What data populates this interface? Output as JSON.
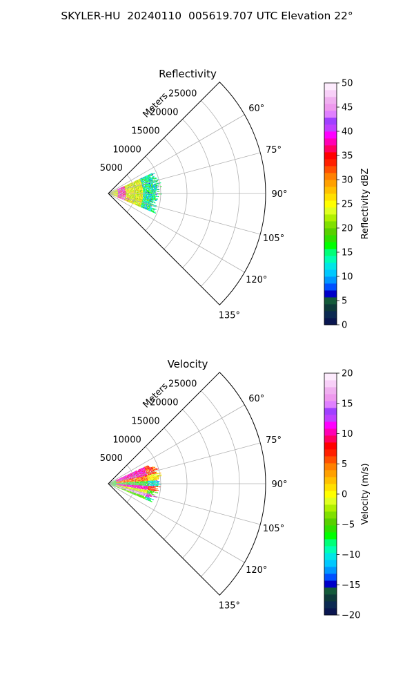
{
  "page": {
    "title": "SKYLER-HU  20240110  005619.707 UTC Elevation 22°"
  },
  "chart_data": [
    {
      "type": "ppi-sector",
      "title": "Reflectivity",
      "range_label": "Meters",
      "range_ticks": [
        5000,
        10000,
        15000,
        20000,
        25000
      ],
      "range_tick_labels": [
        "5000",
        "10000",
        "15000",
        "20000",
        "25000"
      ],
      "range_max": 30000,
      "theta_ticks": [
        60,
        75,
        90,
        105,
        120,
        135
      ],
      "theta_tick_labels": [
        "60°",
        "75°",
        "90°",
        "105°",
        "120°",
        "135°"
      ],
      "theta_range": [
        45,
        135
      ],
      "grid": true,
      "colorbar": {
        "label": "Reflectivity dBZ",
        "min": 0,
        "max": 50,
        "ticks": [
          0,
          5,
          10,
          15,
          20,
          25,
          30,
          35,
          40,
          45,
          50
        ],
        "tick_labels": [
          "0",
          "5",
          "10",
          "15",
          "20",
          "25",
          "30",
          "35",
          "40",
          "45",
          "50"
        ],
        "colors": [
          "#0a1650",
          "#0c2a52",
          "#0e3a3a",
          "#145a3a",
          "#0000c8",
          "#0050ff",
          "#0096ff",
          "#00c8ff",
          "#00e6e6",
          "#00ffb4",
          "#00ff78",
          "#00ff00",
          "#30e000",
          "#58d000",
          "#80e000",
          "#b0f000",
          "#e0ff20",
          "#ffff00",
          "#ffe000",
          "#ffc000",
          "#ffa000",
          "#ff8000",
          "#ff5000",
          "#ff2000",
          "#ff0000",
          "#ff0060",
          "#ff00b4",
          "#ff00ff",
          "#c040ff",
          "#a040ff",
          "#e080ff",
          "#ee99ee",
          "#f0b0f0",
          "#f8d0f8",
          "#fdebfd"
        ]
      },
      "data_extent": {
        "theta": [
          65,
          113
        ],
        "range_max_m": 10000,
        "range_min_m": 0
      },
      "echo_summary": "Near-range echoes dominated by 20-30 dBZ with a ring of 35-45 dBZ near 2000-3000 m and weaker 10-20 dBZ at the outer edge."
    },
    {
      "type": "ppi-sector",
      "title": "Velocity",
      "range_label": "Meters",
      "range_ticks": [
        5000,
        10000,
        15000,
        20000,
        25000
      ],
      "range_tick_labels": [
        "5000",
        "10000",
        "15000",
        "20000",
        "25000"
      ],
      "range_max": 30000,
      "theta_ticks": [
        60,
        75,
        90,
        105,
        120,
        135
      ],
      "theta_tick_labels": [
        "60°",
        "75°",
        "90°",
        "105°",
        "120°",
        "135°"
      ],
      "theta_range": [
        45,
        135
      ],
      "grid": true,
      "colorbar": {
        "label": "Velocity (m/s)",
        "min": -20,
        "max": 20,
        "ticks": [
          -20,
          -15,
          -10,
          -5,
          0,
          5,
          10,
          15,
          20
        ],
        "tick_labels": [
          "−20",
          "−15",
          "−10",
          "−5",
          "0",
          "5",
          "10",
          "15",
          "20"
        ],
        "colors": [
          "#0a1650",
          "#0c2a52",
          "#0e3a3a",
          "#145a3a",
          "#0000c8",
          "#0050ff",
          "#0096ff",
          "#00c8ff",
          "#00e6e6",
          "#00ffb4",
          "#00ff78",
          "#00ff00",
          "#30e000",
          "#58d000",
          "#80e000",
          "#b0f000",
          "#e0ff20",
          "#ffff00",
          "#ffe000",
          "#ffc000",
          "#ffa000",
          "#ff8000",
          "#ff5000",
          "#ff2000",
          "#ff0000",
          "#ff0060",
          "#ff00b4",
          "#ff00ff",
          "#c040ff",
          "#a040ff",
          "#e080ff",
          "#ee99ee",
          "#f0b0f0",
          "#f8d0f8",
          "#fdebfd"
        ]
      },
      "data_extent": {
        "theta": [
          65,
          113
        ],
        "range_max_m": 10000,
        "range_min_m": 0
      },
      "echo_summary": "Outbound (red, 5-12 m/s) in the northern half, inbound (cyan/green, -10 to -5 m/s) near the radial center and a magenta/white band around 100-110 degrees."
    }
  ]
}
